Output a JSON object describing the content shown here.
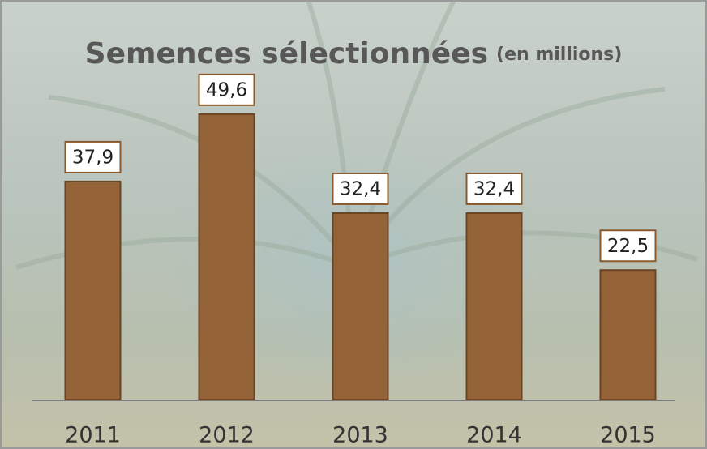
{
  "chart_data": {
    "type": "bar",
    "title": "Semences sélectionnées",
    "subtitle": "(en millions)",
    "categories": [
      "2011",
      "2012",
      "2013",
      "2014",
      "2015"
    ],
    "values": [
      37.9,
      49.6,
      32.4,
      32.4,
      22.5
    ],
    "value_labels": [
      "37,9",
      "49,6",
      "32,4",
      "32,4",
      "22,5"
    ],
    "color": "#946438"
  }
}
